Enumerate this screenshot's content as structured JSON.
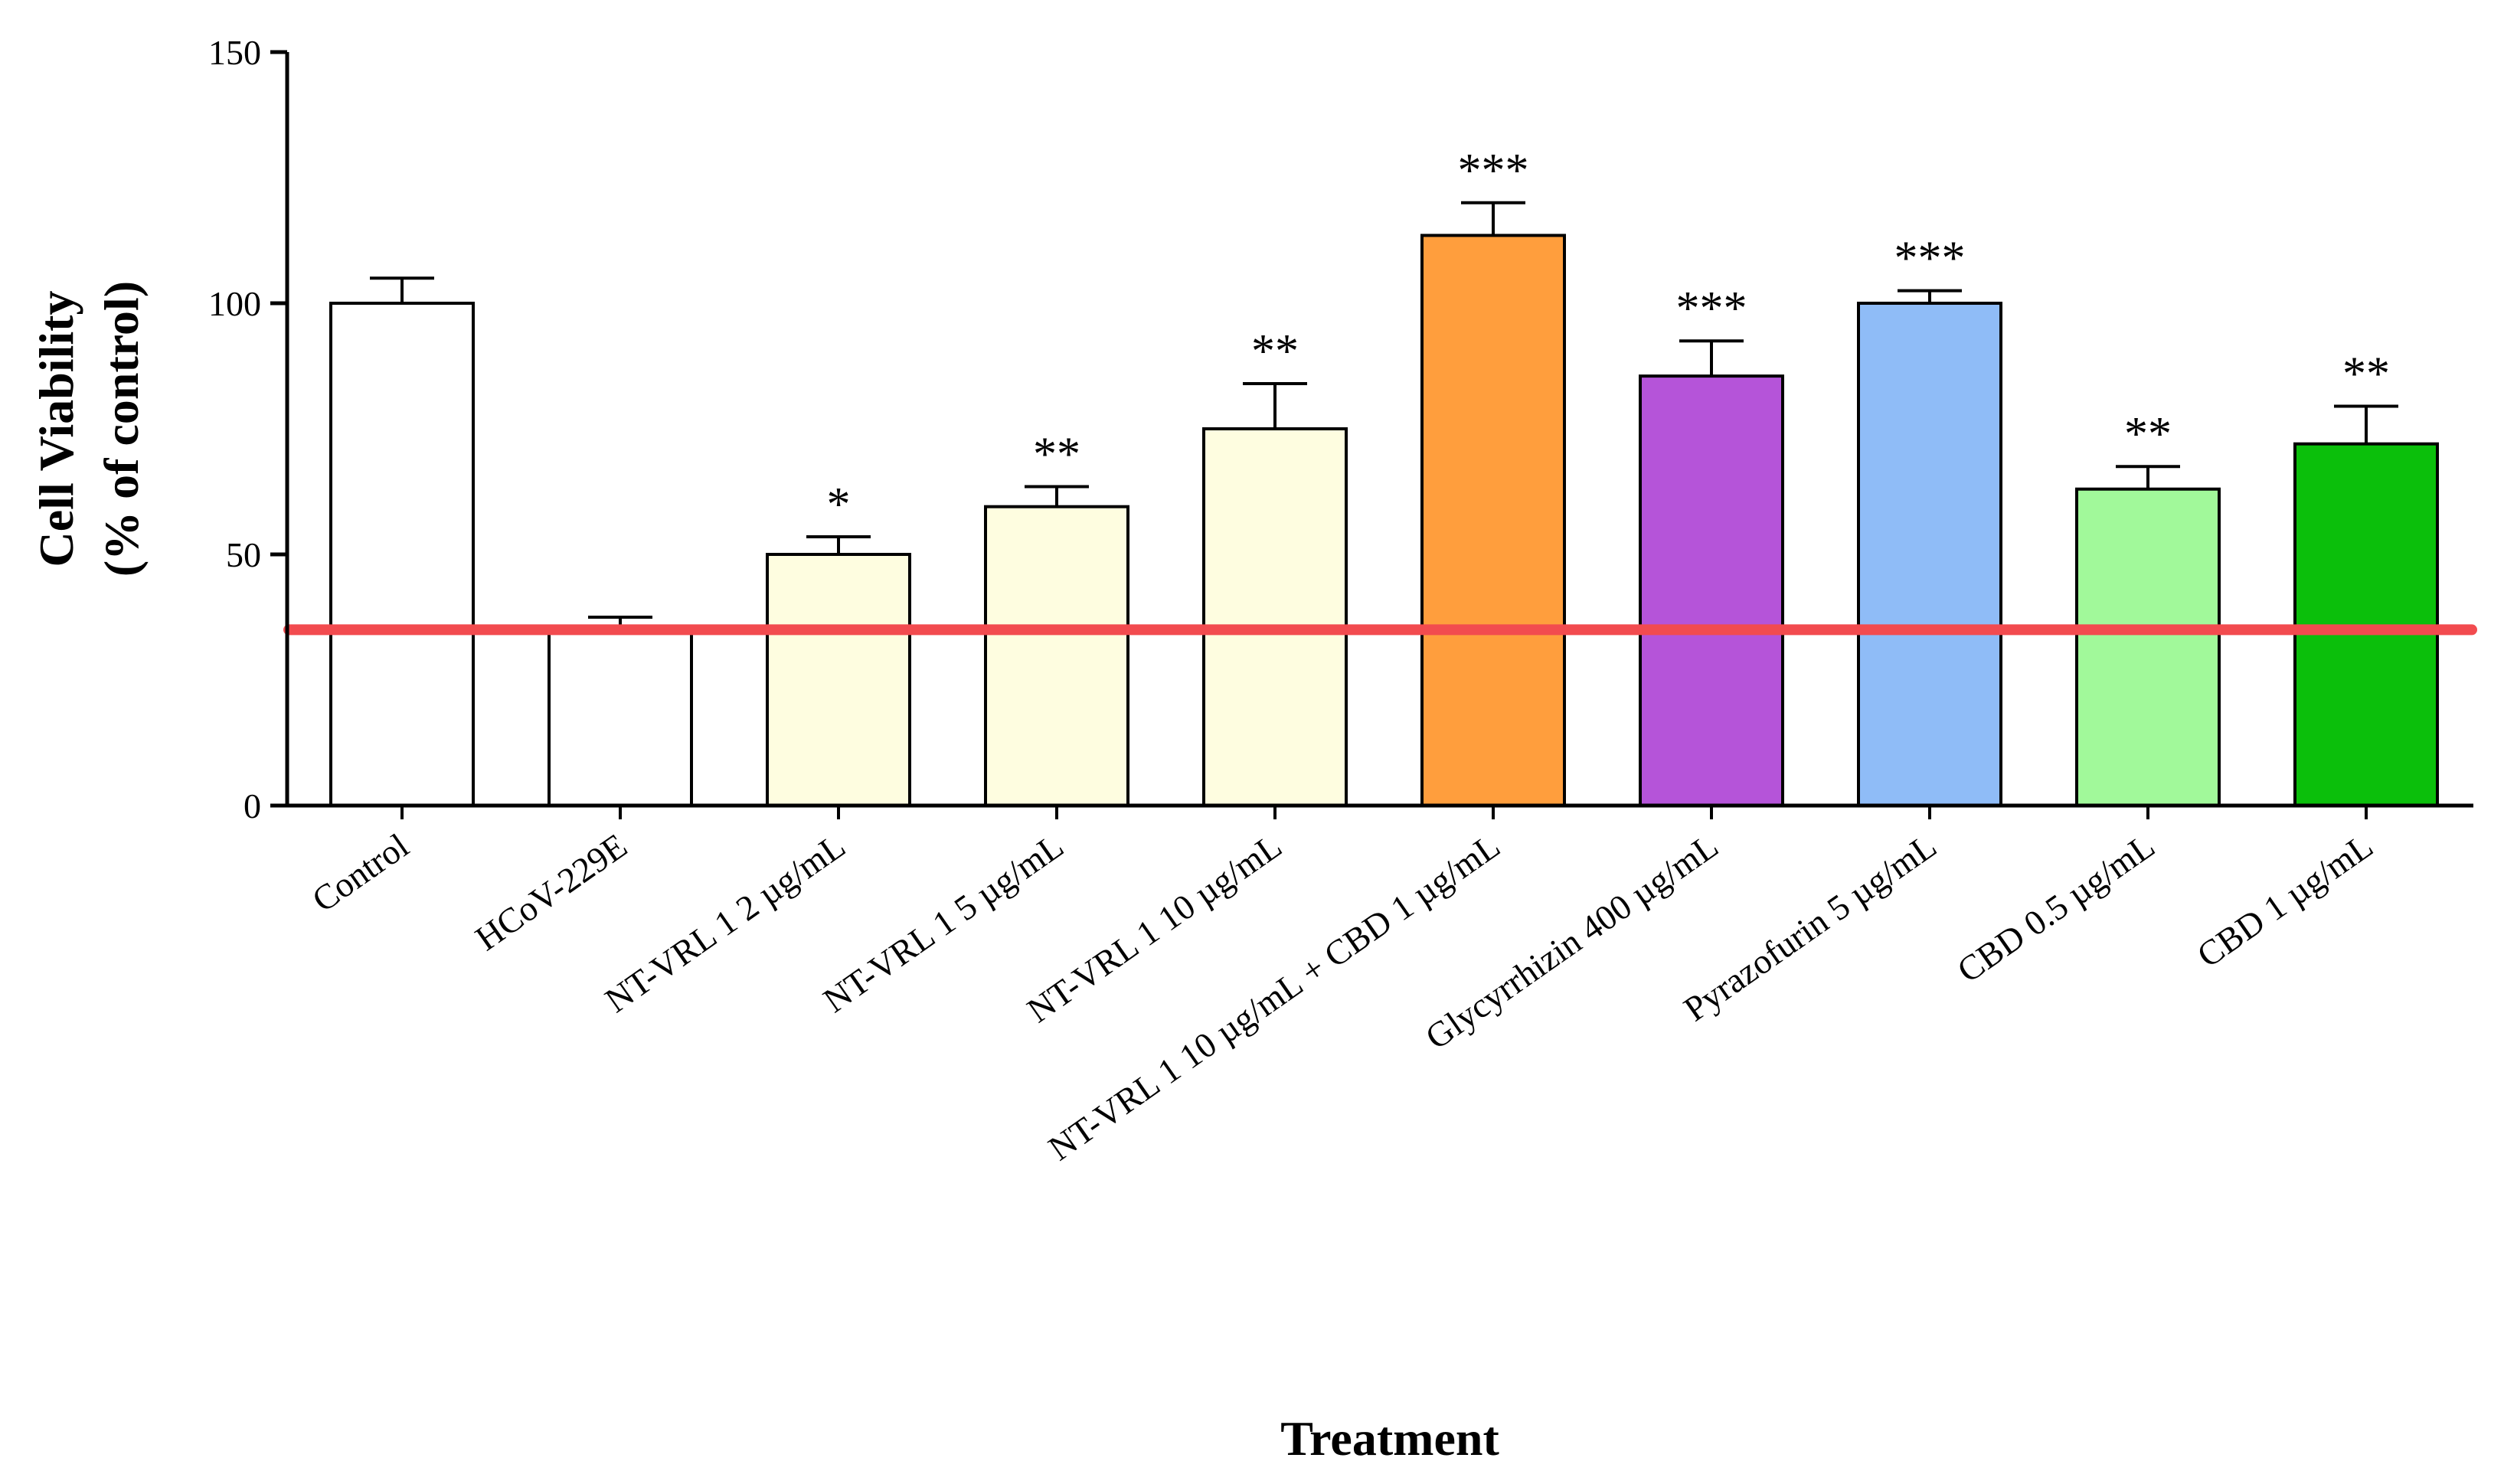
{
  "chart_data": {
    "type": "bar",
    "title": "",
    "xlabel": "Treatment",
    "ylabel": [
      "Cell Viability",
      "(% of control)"
    ],
    "ylim": [
      0,
      150
    ],
    "yticks": [
      0,
      50,
      100,
      150
    ],
    "grid": false,
    "categories": [
      "Control",
      "HCoV-229E",
      "NT-VRL 1 2 µg/mL",
      "NT-VRL 1 5 µg/mL",
      "NT-VRL 1 10 µg/mL",
      "NT-VRL 1 10 µg/mL + CBD 1 µg/mL",
      "Glycyrrhizin 400 µg/mL",
      "Pyrazofurin 5 µg/mL",
      "CBD 0.5 µg/mL",
      "CBD 1 µg/mL"
    ],
    "values": [
      100,
      35,
      50,
      59.5,
      75,
      113.5,
      85.5,
      100,
      63,
      72
    ],
    "error": [
      5,
      2.5,
      3.5,
      4,
      9,
      6.5,
      7,
      2.5,
      4.5,
      7.5
    ],
    "significance": [
      "",
      "",
      "*",
      "**",
      "**",
      "***",
      "***",
      "***",
      "**",
      "**"
    ],
    "bar_colors": [
      "#ffffff",
      "#ffffff",
      "#fefde0",
      "#fefde0",
      "#fefde0",
      "#ff9e3d",
      "#b554d9",
      "#8fbcf7",
      "#a1f99a",
      "#0bbf0b"
    ],
    "reference_line": {
      "value": 35,
      "color": "#f24b4f"
    }
  }
}
